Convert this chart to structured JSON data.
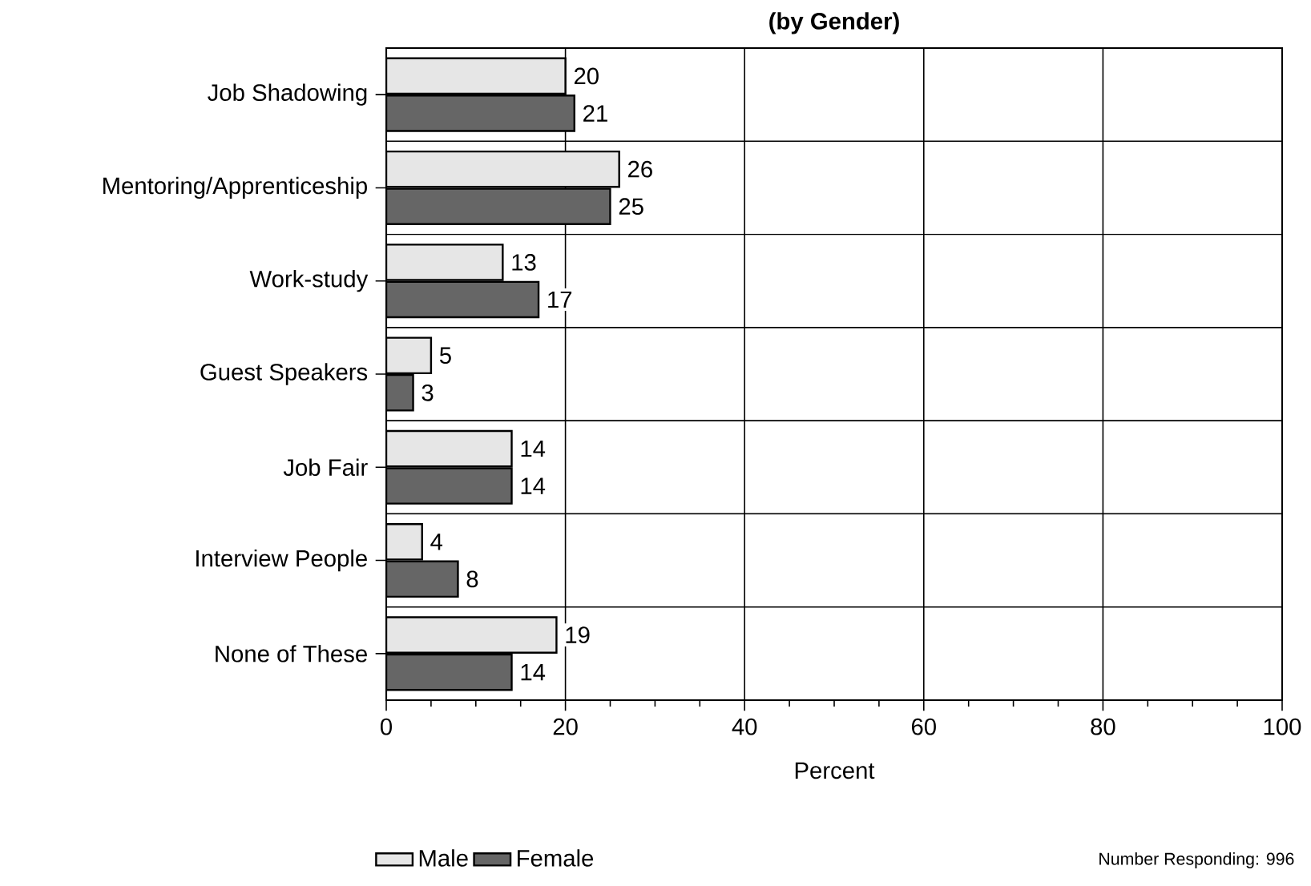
{
  "chart_data": {
    "type": "bar",
    "orientation": "horizontal",
    "title": "(by Gender)",
    "xlabel": "Percent",
    "categories": [
      "Job Shadowing",
      "Mentoring/Apprenticeship",
      "Work-study",
      "Guest Speakers",
      "Job Fair",
      "Interview People",
      "None of These"
    ],
    "series": [
      {
        "name": "Male",
        "color": "#e6e6e6",
        "values": [
          20,
          26,
          13,
          5,
          14,
          4,
          19
        ]
      },
      {
        "name": "Female",
        "color": "#666666",
        "values": [
          21,
          25,
          17,
          3,
          14,
          8,
          14
        ]
      }
    ],
    "xlim": [
      0,
      100
    ],
    "xticks": [
      0,
      20,
      40,
      60,
      80,
      100
    ],
    "grid": true,
    "legend": "bottom left",
    "data_labels": true,
    "annotations": [
      "Number Responding: 996"
    ]
  }
}
